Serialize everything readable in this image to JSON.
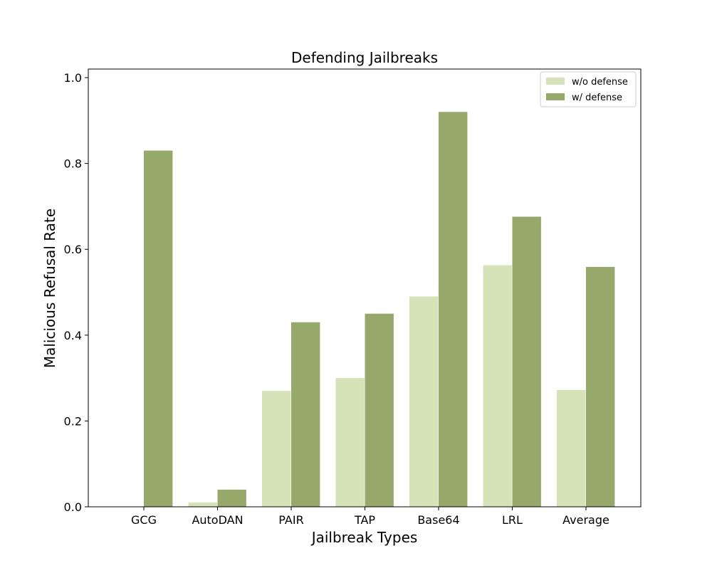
{
  "chart_data": {
    "type": "bar",
    "title": "Defending Jailbreaks",
    "xlabel": "Jailbreak Types",
    "ylabel": "Malicious Refusal Rate",
    "categories": [
      "GCG",
      "AutoDAN",
      "PAIR",
      "TAP",
      "Base64",
      "LRL",
      "Average"
    ],
    "series": [
      {
        "name": "w/o defense",
        "color": "#d6e3b8",
        "values": [
          0.0,
          0.01,
          0.27,
          0.3,
          0.49,
          0.563,
          0.272
        ]
      },
      {
        "name": "w/ defense",
        "color": "#97a96a",
        "values": [
          0.83,
          0.04,
          0.43,
          0.45,
          0.92,
          0.676,
          0.559
        ]
      }
    ],
    "ylim": [
      0,
      1.02
    ],
    "yticks": [
      "0.0",
      "0.2",
      "0.4",
      "0.6",
      "0.8",
      "1.0"
    ],
    "grid": false,
    "legend_position": "top-right"
  }
}
